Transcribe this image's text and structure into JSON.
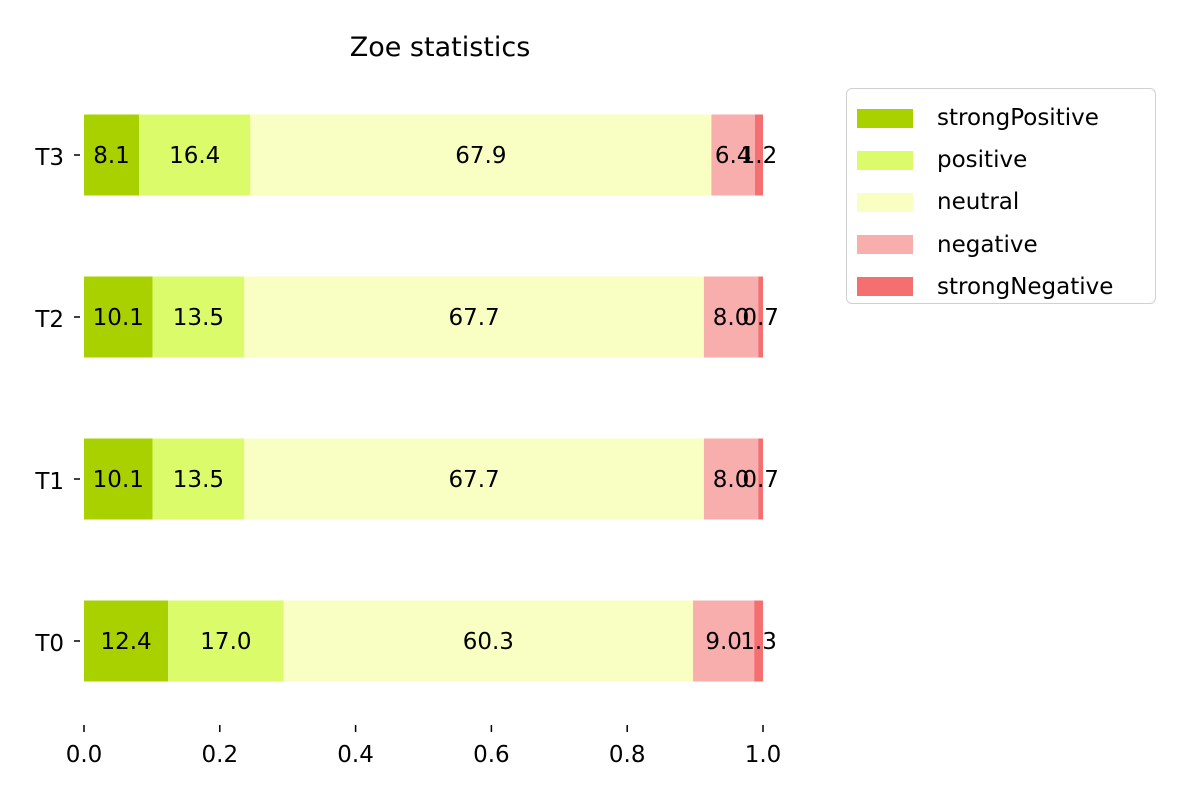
{
  "chart_data": {
    "type": "bar",
    "orientation": "horizontal",
    "stacked": true,
    "title": "Zoe statistics",
    "categories": [
      "T0",
      "T1",
      "T2",
      "T3"
    ],
    "xlim": [
      0.0,
      1.0
    ],
    "xticks": [
      "0.0",
      "0.2",
      "0.4",
      "0.6",
      "0.8",
      "1.0"
    ],
    "xlabel": "",
    "ylabel": "",
    "grid": false,
    "legend_position": "outside-right-top",
    "series": [
      {
        "name": "strongPositive",
        "color": "#a9d100",
        "values": [
          0.124,
          0.101,
          0.101,
          0.081
        ],
        "labels": [
          "12.4",
          "10.1",
          "10.1",
          "8.1"
        ]
      },
      {
        "name": "positive",
        "color": "#dcfb6a",
        "values": [
          0.17,
          0.135,
          0.135,
          0.164
        ],
        "labels": [
          "17.0",
          "13.5",
          "13.5",
          "16.4"
        ]
      },
      {
        "name": "neutral",
        "color": "#f9fec3",
        "values": [
          0.603,
          0.677,
          0.677,
          0.679
        ],
        "labels": [
          "60.3",
          "67.7",
          "67.7",
          "67.9"
        ]
      },
      {
        "name": "negative",
        "color": "#f9aeae",
        "values": [
          0.09,
          0.08,
          0.08,
          0.064
        ],
        "labels": [
          "9.0",
          "8.0",
          "8.0",
          "6.4"
        ]
      },
      {
        "name": "strongNegative",
        "color": "#f47070",
        "values": [
          0.013,
          0.007,
          0.007,
          0.012
        ],
        "labels": [
          "1.3",
          "0.7",
          "0.7",
          "1.2"
        ]
      }
    ]
  }
}
